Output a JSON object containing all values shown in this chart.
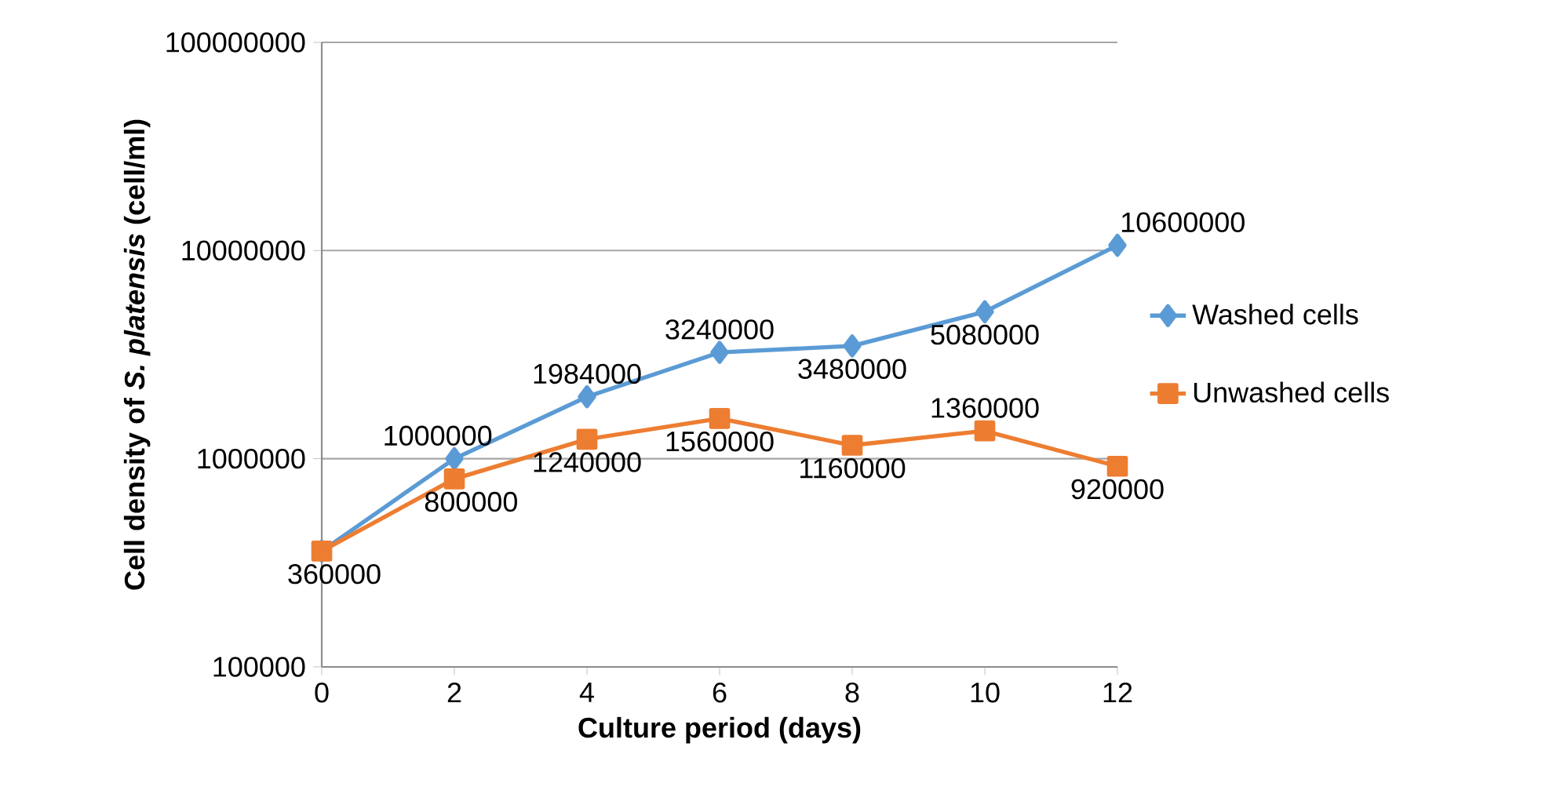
{
  "chart_data": {
    "type": "line",
    "xlabel": "Culture period (days)",
    "ylabel": "Cell density of *S. platensis* (cell/ml)",
    "x": [
      0,
      2,
      4,
      6,
      8,
      10,
      12
    ],
    "series": [
      {
        "name": "Washed cells",
        "color": "#5b9bd5",
        "marker": "diamond",
        "values": [
          360000,
          1000000,
          1984000,
          3240000,
          3480000,
          5080000,
          10600000
        ],
        "value_labels": [
          null,
          "1000000",
          "1984000",
          "3240000",
          "3480000",
          "5080000",
          "10600000"
        ]
      },
      {
        "name": "Unwashed cells",
        "color": "#ed7d31",
        "marker": "square",
        "values": [
          360000,
          800000,
          1240000,
          1560000,
          1160000,
          1360000,
          920000
        ],
        "value_labels": [
          "360000",
          "800000",
          "1240000",
          "1560000",
          "1160000",
          "1360000",
          "920000"
        ]
      }
    ],
    "log": "y",
    "xlim": [
      0,
      12
    ],
    "xticks": [
      0,
      2,
      4,
      6,
      8,
      10,
      12
    ],
    "ylim": [
      100000,
      100000000
    ],
    "yticks": [
      100000,
      1000000,
      10000000,
      100000000
    ],
    "grid": "y",
    "legend": "right",
    "line_style": "solid"
  }
}
